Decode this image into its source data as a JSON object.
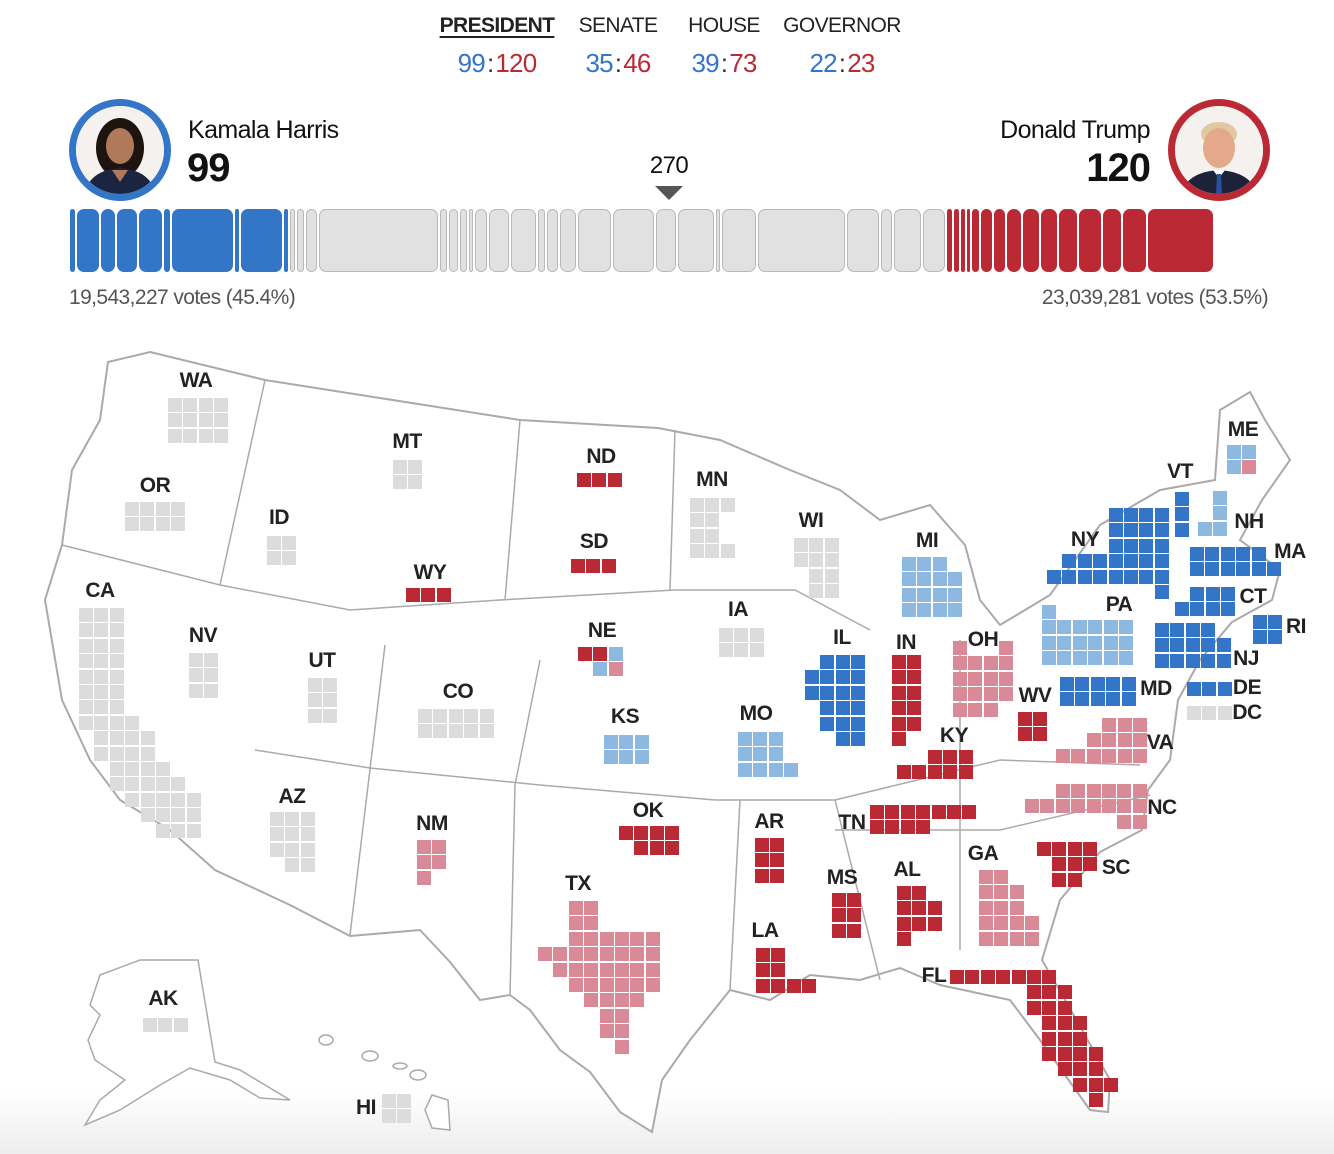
{
  "tabs": [
    {
      "label": "PRESIDENT",
      "dem": "99",
      "rep": "120",
      "active": true
    },
    {
      "label": "SENATE",
      "dem": "35",
      "rep": "46",
      "active": false
    },
    {
      "label": "HOUSE",
      "dem": "39",
      "rep": "73",
      "active": false
    },
    {
      "label": "GOVERNOR",
      "dem": "22",
      "rep": "23",
      "active": false
    }
  ],
  "score_separator": ":",
  "candidates": {
    "dem": {
      "name": "Kamala Harris",
      "ev": "99",
      "votes": "19,543,227 votes (45.4%)"
    },
    "rep": {
      "name": "Donald Trump",
      "ev": "120",
      "votes": "23,039,281 votes (53.5%)"
    }
  },
  "threshold": "270",
  "total_ev": 538,
  "colors": {
    "D": "#3375c7",
    "b": "#8db8df",
    "R": "#bb2a34",
    "r": "#d98a96",
    "g": "#dcdcdc"
  },
  "bar": {
    "dem_segments": [
      3,
      11,
      7,
      10,
      11,
      4,
      28,
      3,
      19,
      3
    ],
    "uncalled_segments": [
      3,
      4,
      6,
      54,
      4,
      5,
      4,
      3,
      6,
      10,
      12,
      4,
      6,
      8,
      16,
      19,
      10,
      17,
      3,
      16,
      40,
      15,
      6,
      13,
      11
    ],
    "rep_segments": [
      3,
      3,
      3,
      2,
      4,
      6,
      6,
      7,
      8,
      8,
      9,
      11,
      9,
      11,
      30
    ]
  },
  "states": [
    {
      "abbr": "WA",
      "status": "gggggggggggg"
    },
    {
      "abbr": "OR",
      "status": "gggggggg"
    },
    {
      "abbr": "CA",
      "status": "gggggggggggggggggggggggggggggggggggggggggggggggggggggg"
    },
    {
      "abbr": "ID",
      "status": "gggg"
    },
    {
      "abbr": "NV",
      "status": "gggggg"
    },
    {
      "abbr": "MT",
      "status": "gggg"
    },
    {
      "abbr": "WY",
      "status": "RRR"
    },
    {
      "abbr": "UT",
      "status": "gggggg"
    },
    {
      "abbr": "CO",
      "status": "gggggggggg"
    },
    {
      "abbr": "AZ",
      "status": "ggggggggggg"
    },
    {
      "abbr": "NM",
      "status": "rrrrr"
    },
    {
      "abbr": "ND",
      "status": "RRR"
    },
    {
      "abbr": "SD",
      "status": "RRR"
    },
    {
      "abbr": "NE",
      "status": "RRbbr"
    },
    {
      "abbr": "KS",
      "status": "bbbbbb"
    },
    {
      "abbr": "MN",
      "status": "gggggggggg"
    },
    {
      "abbr": "IA",
      "status": "gggggg"
    },
    {
      "abbr": "WI",
      "status": "gggggggggg"
    },
    {
      "abbr": "MI",
      "status": "bbbbbbbbbbbbbbb"
    },
    {
      "abbr": "IL",
      "status": "DDDDDDDDDDDDDDDDDDD"
    },
    {
      "abbr": "IN",
      "status": "RRRRRRRRRRR"
    },
    {
      "abbr": "OH",
      "status": "rrrrrrrrrrrrrrrrr"
    },
    {
      "abbr": "KY",
      "status": "RRRRRRRR"
    },
    {
      "abbr": "MO",
      "status": "bbbbbbbbbb"
    },
    {
      "abbr": "OK",
      "status": "RRRRRRR"
    },
    {
      "abbr": "TX",
      "status": "rrrrrrrrrrrrrrrrrrrrrrrrrrrrrrrrrrrrrrrr"
    },
    {
      "abbr": "AR",
      "status": "RRRRRR"
    },
    {
      "abbr": "LA",
      "status": "RRRRRRRR"
    },
    {
      "abbr": "MS",
      "status": "RRRRRR"
    },
    {
      "abbr": "AL",
      "status": "RRRRRRRRR"
    },
    {
      "abbr": "TN",
      "status": "RRRRRRRRRRR"
    },
    {
      "abbr": "GA",
      "status": "rrrrrrrrrrrrrrrr"
    },
    {
      "abbr": "SC",
      "status": "RRRRRRRRR"
    },
    {
      "abbr": "NC",
      "status": "rrrrrrrrrrrrrrrr"
    },
    {
      "abbr": "VA",
      "status": "rrrrrrrrrrrrr"
    },
    {
      "abbr": "FL",
      "status": "RRRRRRRRRRRRRRRRRRRRRRRRRRRRRR"
    },
    {
      "abbr": "WV",
      "status": "RRRR"
    },
    {
      "abbr": "ME",
      "status": "bbbr"
    },
    {
      "abbr": "VT",
      "status": "DDD"
    },
    {
      "abbr": "NH",
      "status": "bbbb"
    },
    {
      "abbr": "NY",
      "status": "DDDDDDDDDDDDDDDDDDDDDDDDDDDD"
    },
    {
      "abbr": "MA",
      "status": "DDDDDDDDDDD"
    },
    {
      "abbr": "CT",
      "status": "DDDDDDD"
    },
    {
      "abbr": "RI",
      "status": "DDDD"
    },
    {
      "abbr": "PA",
      "status": "bbbbbbbbbbbbbbbbbbb"
    },
    {
      "abbr": "NJ",
      "status": "DDDDDDDDDDDDDD"
    },
    {
      "abbr": "MD",
      "status": "DDDDDDDDDD"
    },
    {
      "abbr": "DE",
      "status": "DDD"
    },
    {
      "abbr": "DC",
      "status": "ggg"
    },
    {
      "abbr": "AK",
      "status": "ggg"
    },
    {
      "abbr": "HI",
      "status": "gggg"
    }
  ]
}
